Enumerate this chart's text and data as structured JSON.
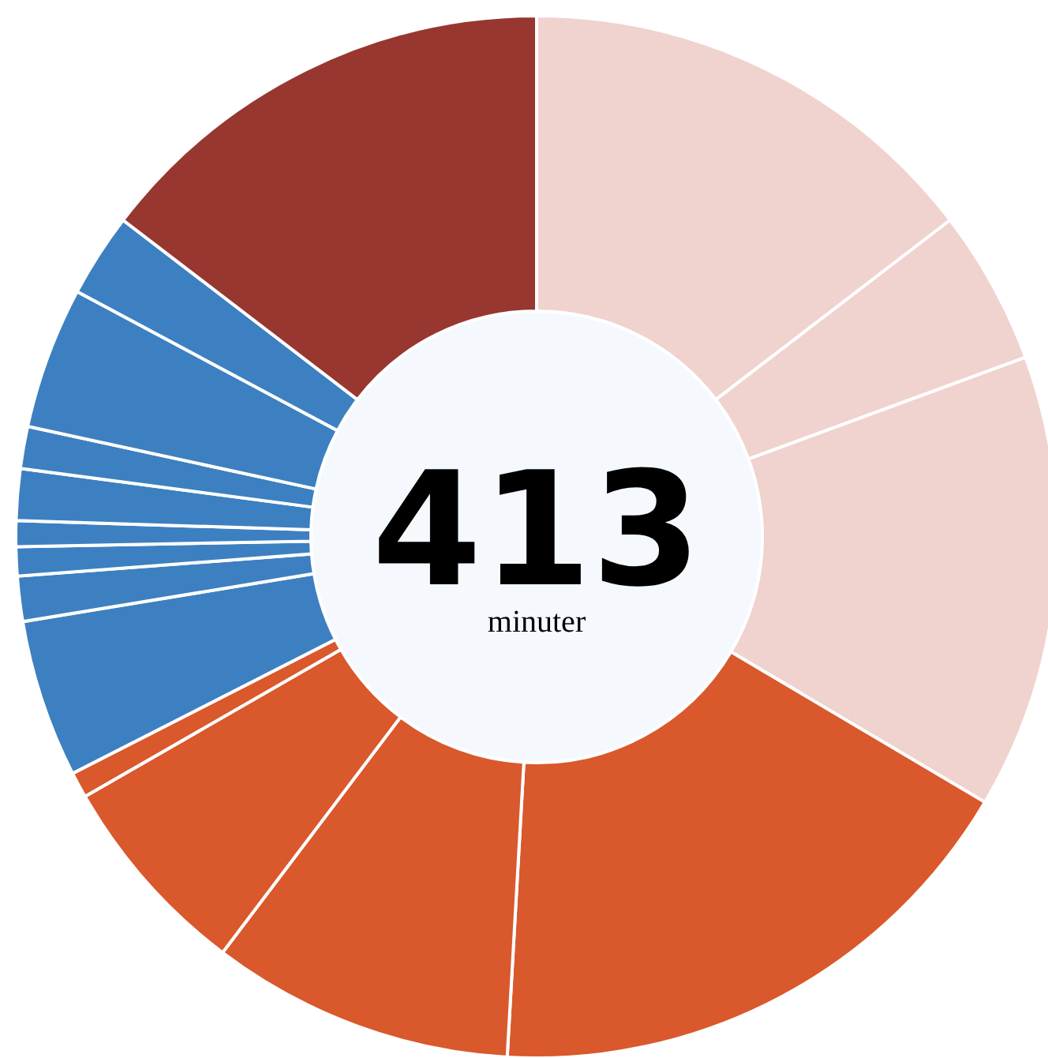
{
  "chart_data": {
    "type": "donut",
    "title": "413",
    "subtitle": "minuter",
    "categories": [
      null,
      null,
      null,
      null,
      null,
      null,
      null,
      null,
      null,
      null,
      null,
      null,
      null,
      null,
      null,
      null
    ],
    "values": [
      14.6,
      4.8,
      14.1,
      17.4,
      9.4,
      6.4,
      0.8,
      4.9,
      1.4,
      0.9,
      0.8,
      1.6,
      1.3,
      4.4,
      2.6,
      14.6
    ],
    "colors": [
      "#f0d2cf",
      "#f0d2cf",
      "#f0d2cf",
      "#d9582c",
      "#d9582c",
      "#d9582c",
      "#d9582c",
      "#3d80c1",
      "#3d80c1",
      "#3d80c1",
      "#3d80c1",
      "#3d80c1",
      "#3d80c1",
      "#3d80c1",
      "#3d80c1",
      "#983630"
    ]
  }
}
